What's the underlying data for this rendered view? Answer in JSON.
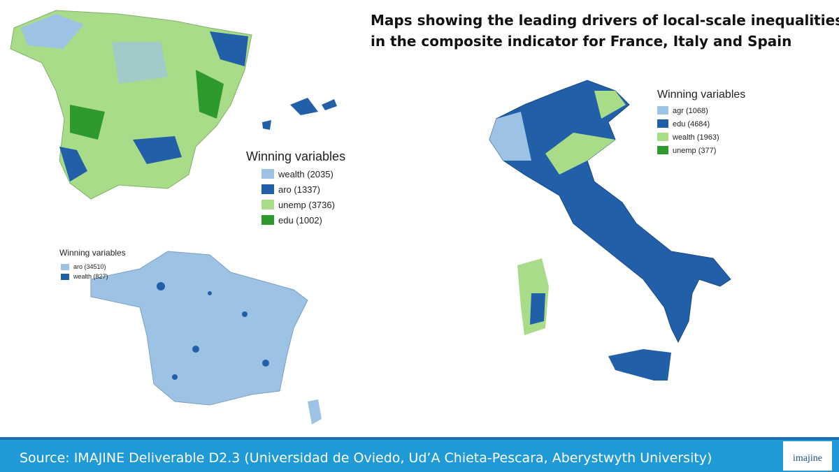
{
  "title_lines": [
    "Maps showing the leading drivers of local-scale inequalities",
    "in the composite indicator for France, Italy and Spain"
  ],
  "maps": [
    {
      "legend_title": "Winning variables",
      "items": [
        {
          "label": "wealth (2035)",
          "color": "#9cc3e4"
        },
        {
          "label": "aro (1337)",
          "color": "#2160a8"
        },
        {
          "label": "unemp (3736)",
          "color": "#a8dc88"
        },
        {
          "label": "edu (1002)",
          "color": "#2e9a2e"
        }
      ]
    },
    {
      "legend_title": "Winning variables",
      "items": [
        {
          "label": "aro (34510)",
          "color": "#9cc3e4"
        },
        {
          "label": "wealth (827)",
          "color": "#2160a8"
        }
      ]
    },
    {
      "legend_title": "Winning variables",
      "items": [
        {
          "label": "agr (1068)",
          "color": "#9cc3e4"
        },
        {
          "label": "edu (4684)",
          "color": "#2160a8"
        },
        {
          "label": "wealth (1963)",
          "color": "#a8dc88"
        },
        {
          "label": "unemp (377)",
          "color": "#2e9a2e"
        }
      ]
    }
  ],
  "footer": {
    "source": "Source: IMAJINE Deliverable D2.3 (Universidad de Oviedo, Ud’A Chieta-Pescara, Aberystwyth University)",
    "logo": "imajine"
  }
}
